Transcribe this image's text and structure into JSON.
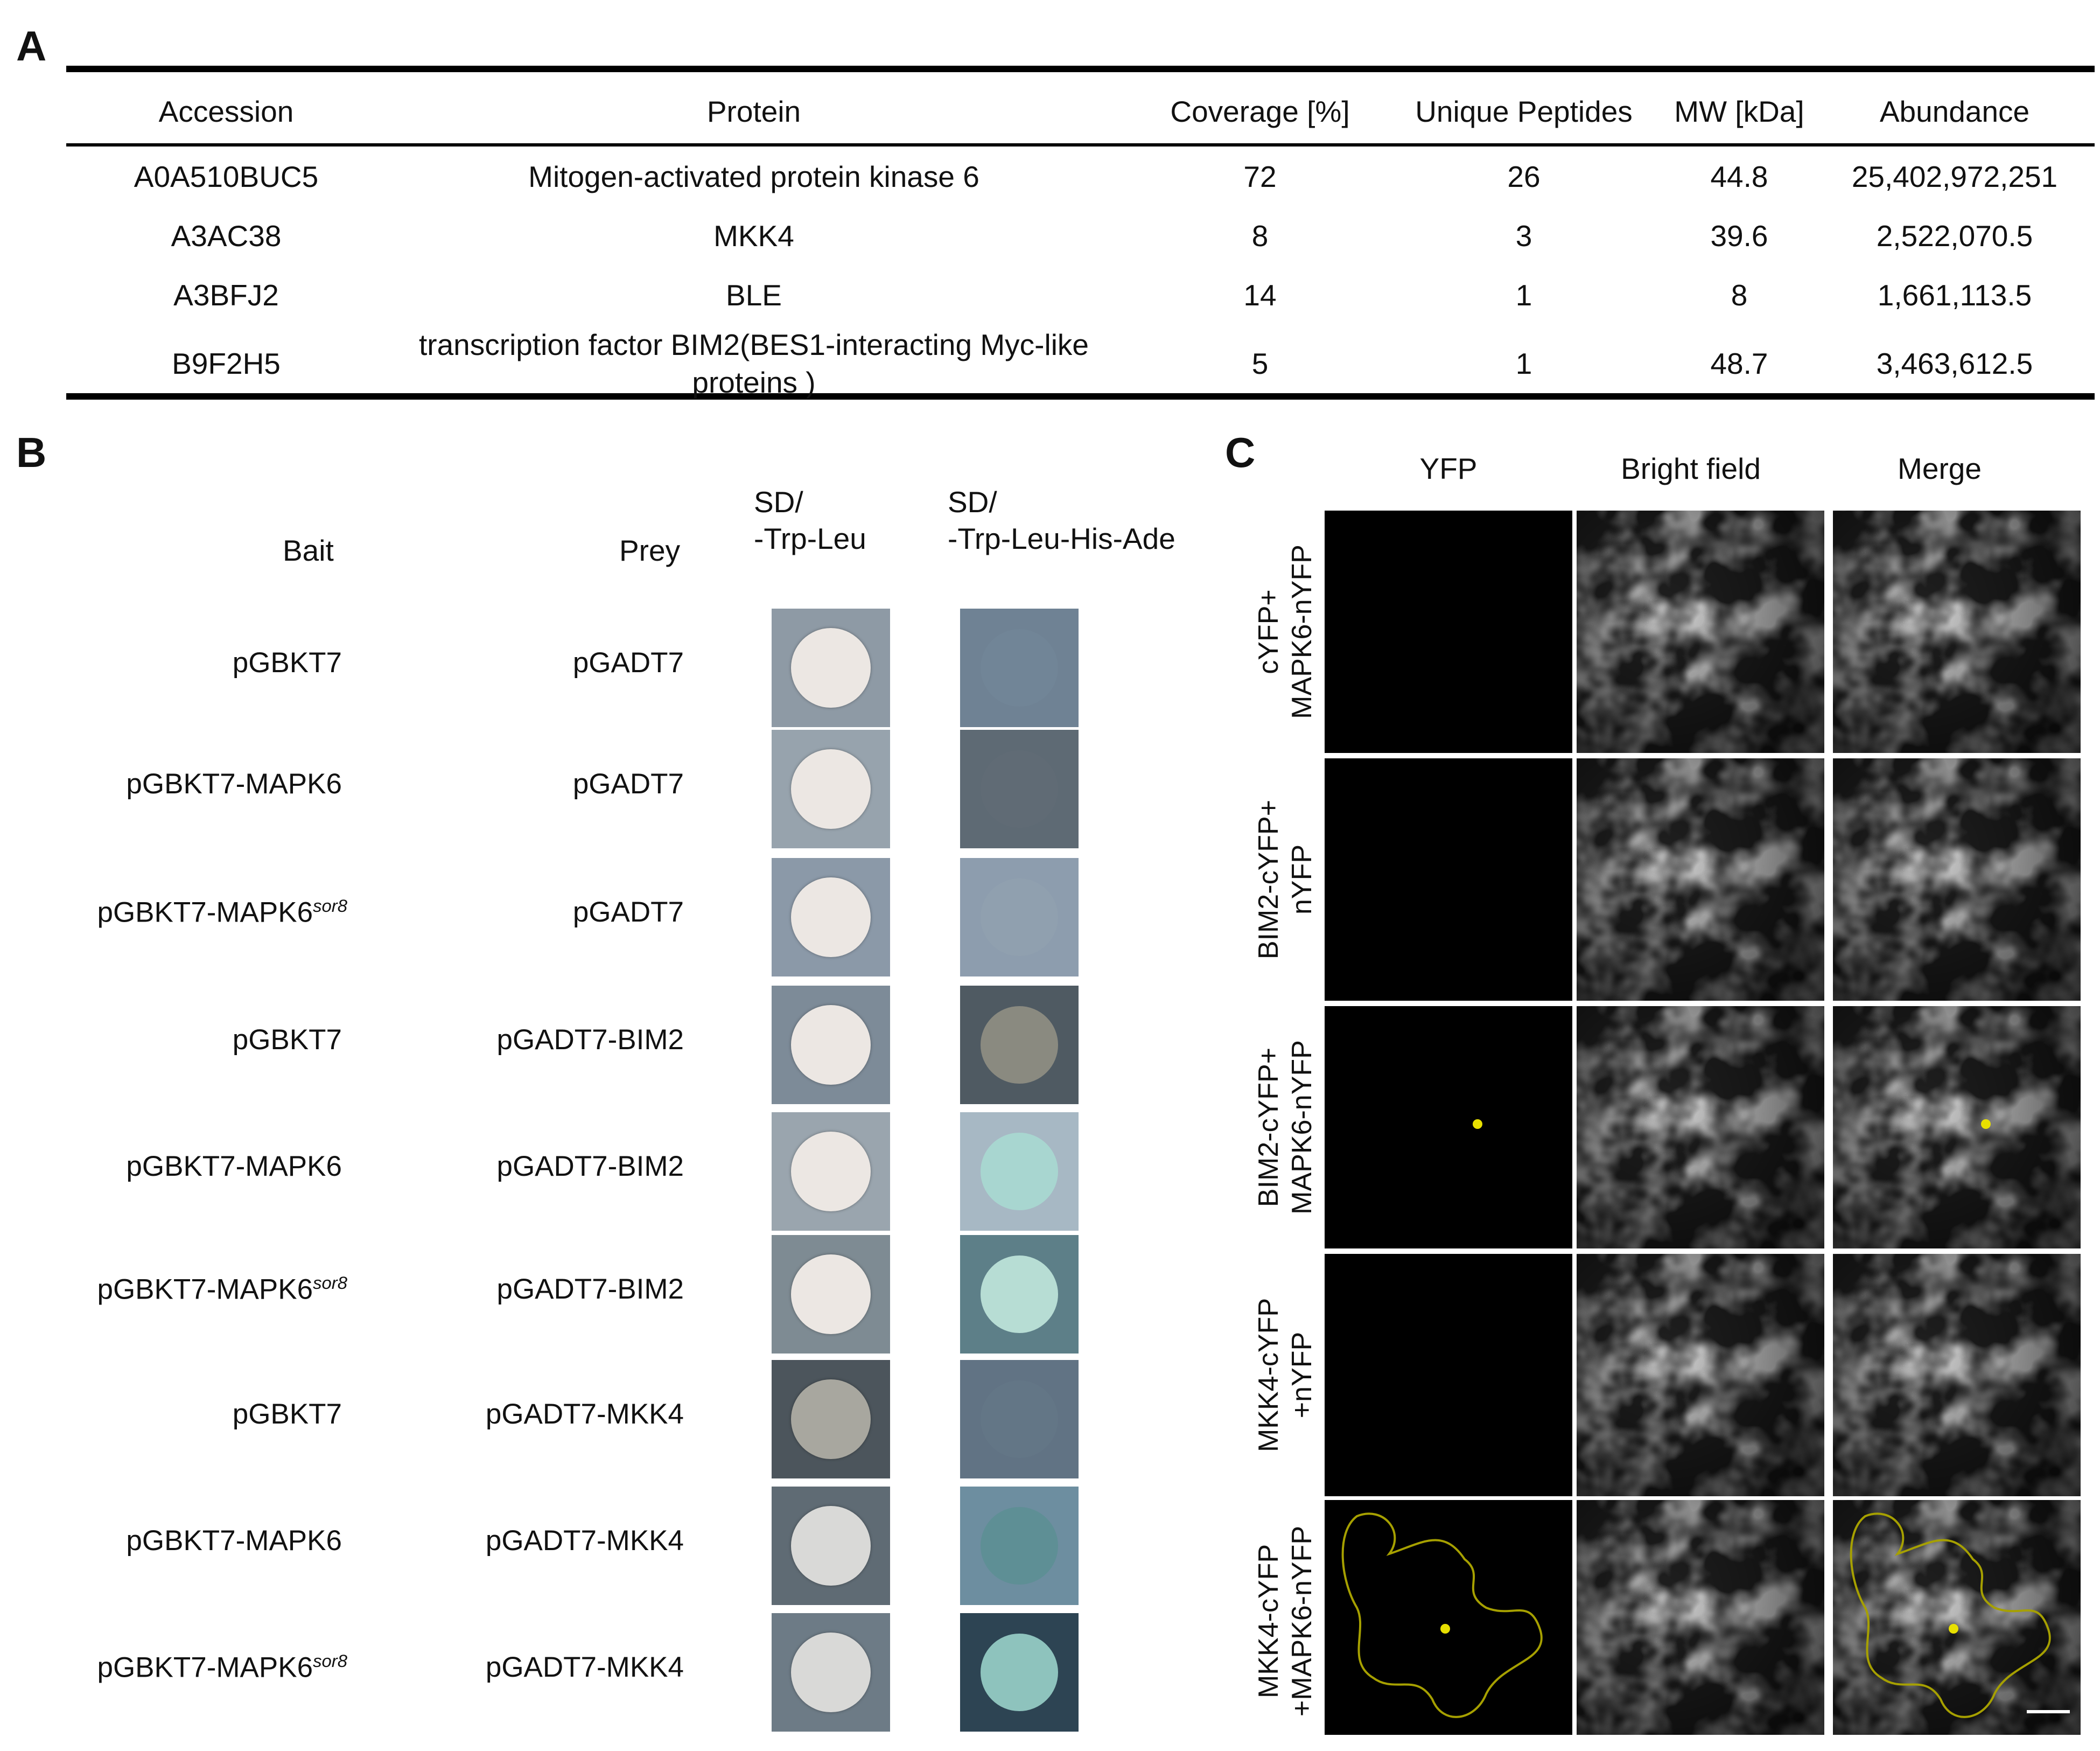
{
  "panel_a": {
    "label": "A",
    "headers": [
      "Accession",
      "Protein",
      "Coverage [%]",
      "Unique Peptides",
      "MW [kDa]",
      "Abundance"
    ],
    "rows": [
      {
        "accession": "A0A510BUC5",
        "protein": "Mitogen-activated protein kinase 6",
        "coverage": "72",
        "unique_peptides": "26",
        "mw": "44.8",
        "abundance": "25,402,972,251"
      },
      {
        "accession": "A3AC38",
        "protein": "MKK4",
        "coverage": "8",
        "unique_peptides": "3",
        "mw": "39.6",
        "abundance": "2,522,070.5"
      },
      {
        "accession": "A3BFJ2",
        "protein": "BLE",
        "coverage": "14",
        "unique_peptides": "1",
        "mw": "8",
        "abundance": "1,661,113.5"
      },
      {
        "accession": "B9F2H5",
        "protein_line1": "transcription factor BIM2(BES1-interacting Myc-like",
        "protein_line2": "proteins )",
        "coverage": "5",
        "unique_peptides": "1",
        "mw": "48.7",
        "abundance": "3,463,612.5"
      }
    ]
  },
  "panel_b": {
    "label": "B",
    "bait_header": "Bait",
    "prey_header": "Prey",
    "medium1_line1": "SD/",
    "medium1_line2": "-Trp-Leu",
    "medium2_line1": "SD/",
    "medium2_line2": "-Trp-Leu-His-Ade",
    "sor8": "sor8",
    "rows": [
      {
        "bait": "pGBKT7",
        "prey": "pGADT7"
      },
      {
        "bait": "pGBKT7-MAPK6",
        "prey": "pGADT7"
      },
      {
        "bait": "pGBKT7-MAPK6",
        "bait_sup": true,
        "prey": "pGADT7"
      },
      {
        "bait": "pGBKT7",
        "prey": "pGADT7-BIM2"
      },
      {
        "bait": "pGBKT7-MAPK6",
        "prey": "pGADT7-BIM2"
      },
      {
        "bait": "pGBKT7-MAPK6",
        "bait_sup": true,
        "prey": "pGADT7-BIM2"
      },
      {
        "bait": "pGBKT7",
        "prey": "pGADT7-MKK4"
      },
      {
        "bait": "pGBKT7-MAPK6",
        "prey": "pGADT7-MKK4"
      },
      {
        "bait": "pGBKT7-MAPK6",
        "bait_sup": true,
        "prey": "pGADT7-MKK4"
      }
    ],
    "colors": {
      "plate_bg": "#9aa4ad",
      "colony_white": "#ece7e3",
      "colony_blue": "#a8d6d0",
      "colony_dark": "#5e8f95"
    }
  },
  "panel_c": {
    "label": "C",
    "col_headers": [
      "YFP",
      "Bright field",
      "Merge"
    ],
    "rows": [
      {
        "line1": "cYFP+",
        "line2": "MAPK6-nYFP"
      },
      {
        "line1": "BIM2-cYFP+",
        "line2": "nYFP"
      },
      {
        "line1": "BIM2-cYFP+",
        "line2": "MAPK6-nYFP"
      },
      {
        "line1": "MKK4-cYFP",
        "line2": "+nYFP"
      },
      {
        "line1": "MKK4-cYFP",
        "line2": "+MAPK6-nYFP"
      }
    ],
    "colors": {
      "yfp_signal": "#e8e000",
      "yfp_bg": "#000000"
    }
  }
}
